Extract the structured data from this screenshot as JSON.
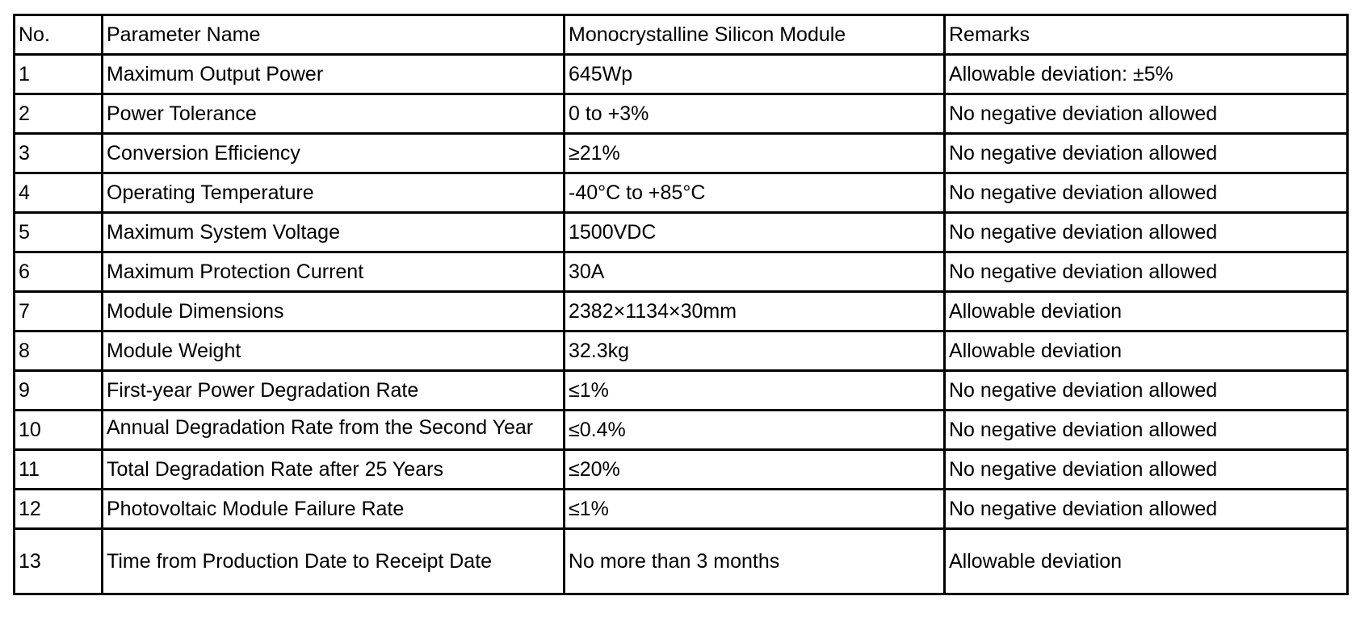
{
  "table": {
    "header": [
      "No.",
      "Parameter Name",
      "Monocrystalline Silicon Module",
      "Remarks"
    ],
    "rows": [
      [
        "1",
        "Maximum Output Power",
        "645Wp",
        "Allowable deviation: ±5%"
      ],
      [
        "2",
        "Power Tolerance",
        "0 to +3%",
        "No negative deviation allowed"
      ],
      [
        "3",
        "Conversion Efficiency",
        "≥21%",
        "No negative deviation allowed"
      ],
      [
        "4",
        "Operating Temperature",
        "-40°C to +85°C",
        "No negative deviation allowed"
      ],
      [
        "5",
        "Maximum System Voltage",
        "1500VDC",
        "No negative deviation allowed"
      ],
      [
        "6",
        "Maximum Protection Current",
        "30A",
        "No negative deviation allowed"
      ],
      [
        "7",
        "Module Dimensions",
        "2382×1134×30mm",
        "Allowable deviation"
      ],
      [
        "8",
        "Module Weight",
        "32.3kg",
        "Allowable deviation"
      ],
      [
        "9",
        "First-year Power Degradation Rate",
        "≤1%",
        "No negative deviation allowed"
      ],
      [
        "10",
        "Annual Degradation Rate from the Second Year",
        "≤0.4%",
        "No negative deviation allowed"
      ],
      [
        "11",
        "Total Degradation Rate after 25 Years",
        "≤20%",
        "No negative deviation allowed"
      ],
      [
        "12",
        "Photovoltaic Module Failure Rate",
        "≤1%",
        "No negative deviation allowed"
      ],
      [
        "13",
        "Time from Production Date to Receipt Date",
        "No more than 3 months",
        "Allowable deviation"
      ]
    ]
  }
}
